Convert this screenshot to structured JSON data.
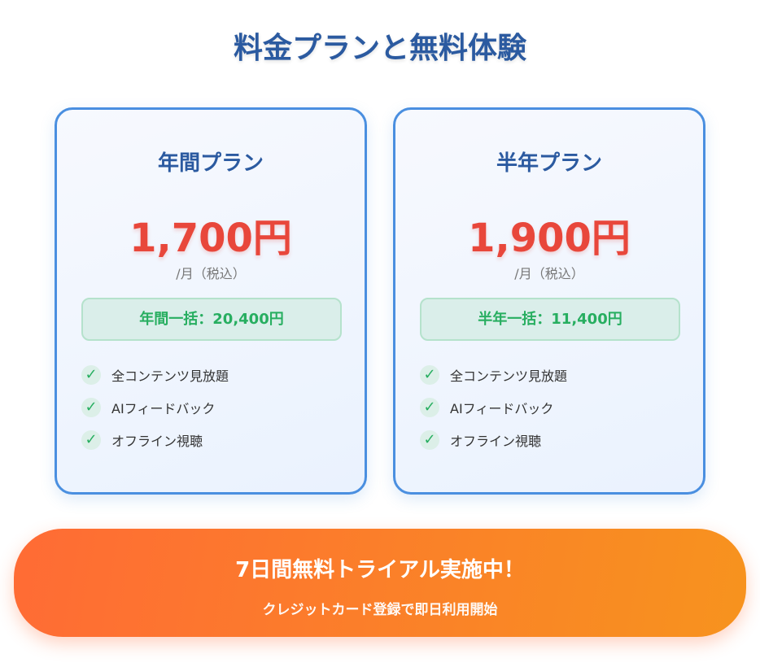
{
  "title": "料金プランと無料体験",
  "plans": [
    {
      "name": "年間プラン",
      "price": "1,700円",
      "per": "/月（税込）",
      "badge": "年間一括：20,400円",
      "features": [
        "全コンテンツ見放題",
        "AIフィードバック",
        "オフライン視聴"
      ]
    },
    {
      "name": "半年プラン",
      "price": "1,900円",
      "per": "/月（税込）",
      "badge": "半年一括：11,400円",
      "features": [
        "全コンテンツ見放題",
        "AIフィードバック",
        "オフライン視聴"
      ]
    }
  ],
  "check_glyph": "✓",
  "banner": {
    "title": "7日間無料トライアル実施中！",
    "subtitle": "クレジットカード登録で即日利用開始"
  },
  "colors": {
    "accent": "#2b5aa0",
    "price": "#e8473b",
    "green": "#27ae60",
    "banner_start": "#ff6b35",
    "banner_end": "#f7931e"
  }
}
